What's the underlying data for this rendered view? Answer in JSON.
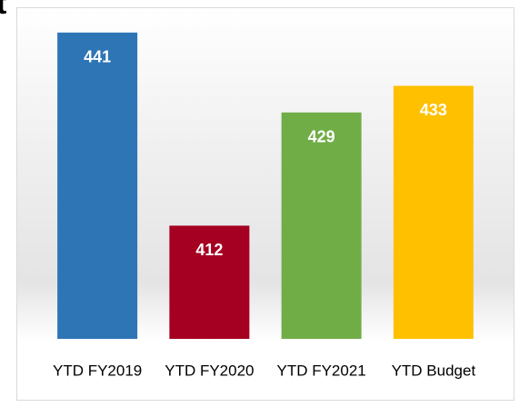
{
  "chart_data": {
    "type": "bar",
    "title": "t",
    "categories": [
      "YTD FY2019",
      "YTD FY2020",
      "YTD FY2021",
      "YTD Budget"
    ],
    "values": [
      441,
      412,
      429,
      433
    ],
    "colors": [
      "#2e75b6",
      "#a50021",
      "#70ad47",
      "#ffc000"
    ],
    "ylim": [
      395,
      445
    ]
  }
}
